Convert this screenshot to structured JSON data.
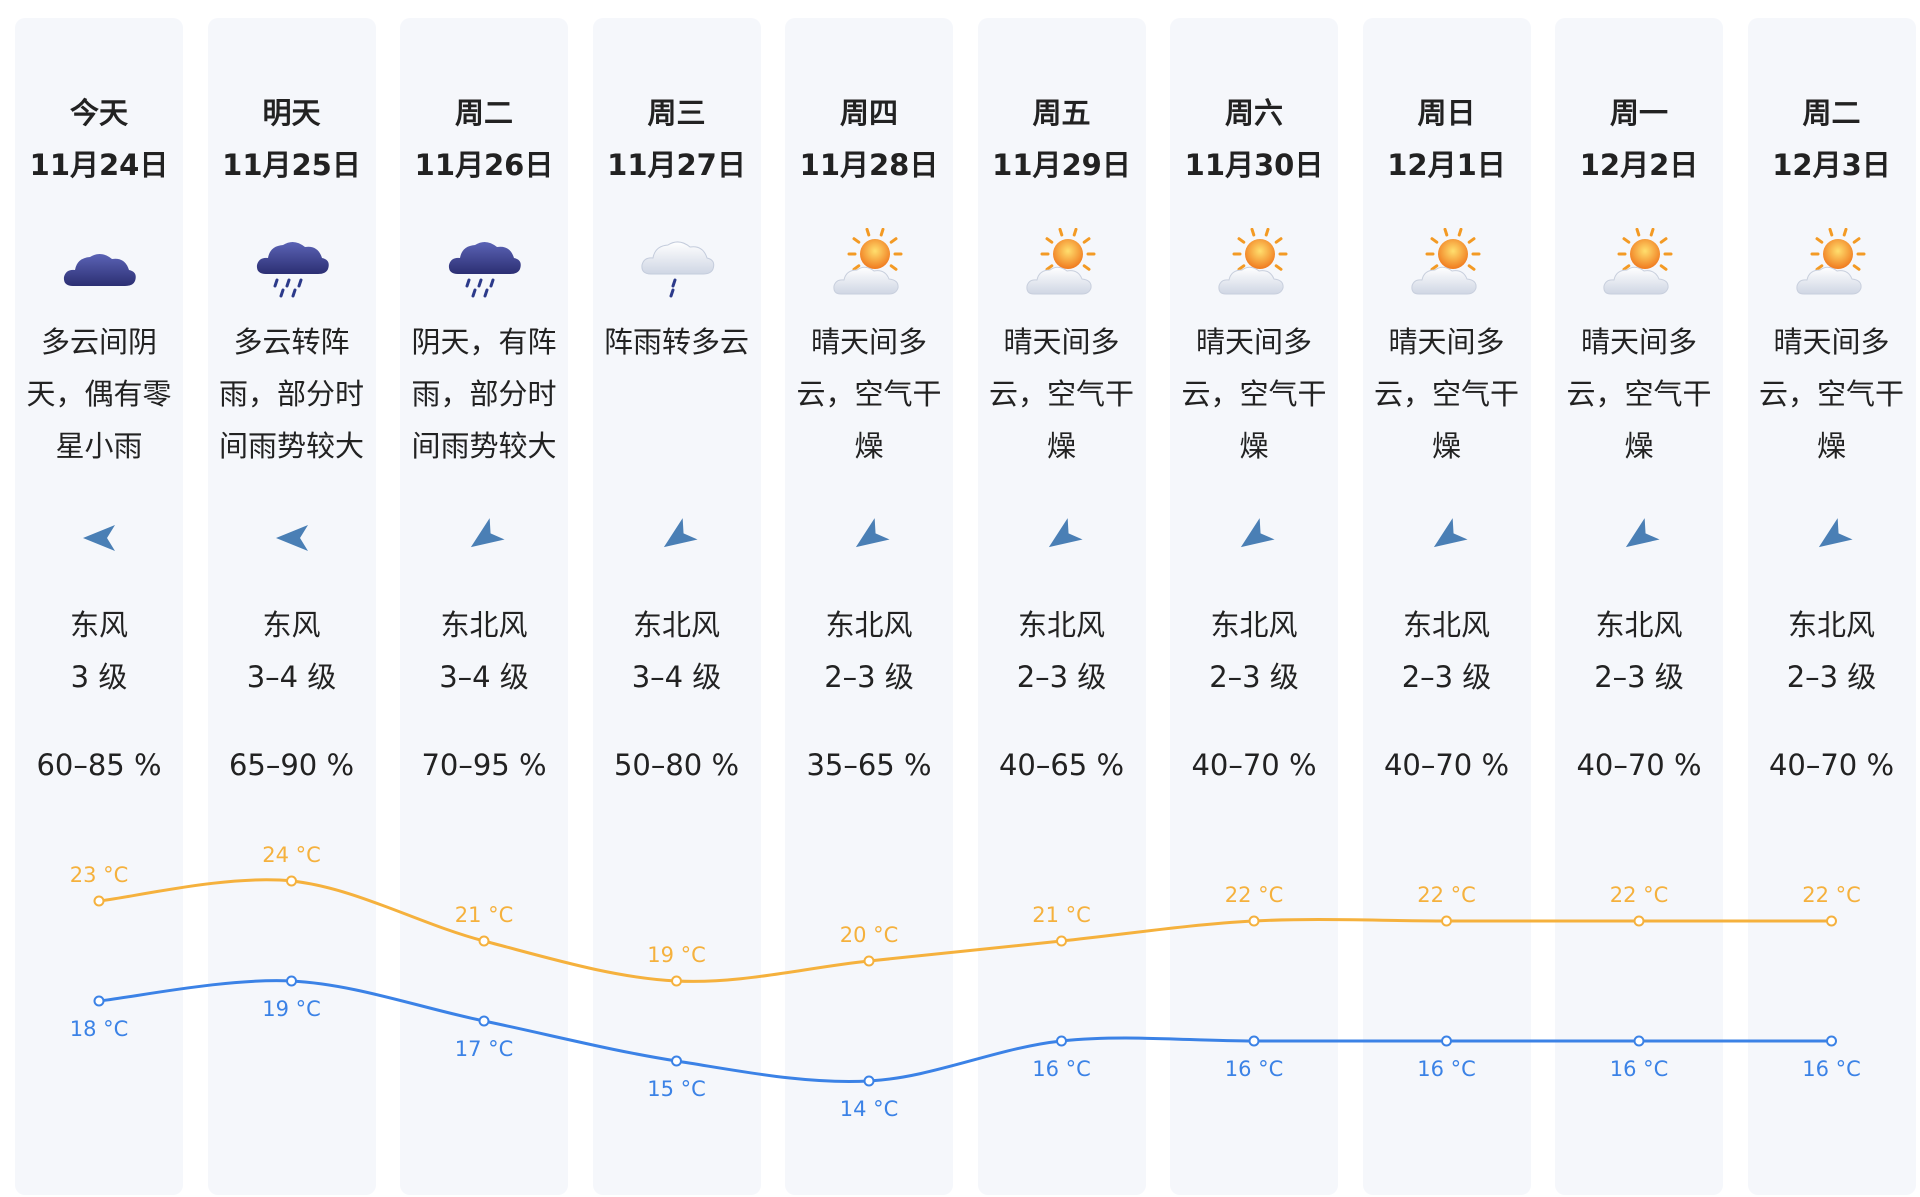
{
  "days": [
    {
      "name": "今天",
      "date": "11月24日",
      "icon": "cloudy-icon",
      "desc": "多云间阴天，偶有零星小雨",
      "wind_icon": "wind-east-icon",
      "wind_dir": "东风",
      "wind_level": "3 级",
      "humidity": "60–85 %",
      "high": 23,
      "low": 18,
      "high_label": "23 °C",
      "low_label": "18 °C"
    },
    {
      "name": "明天",
      "date": "11月25日",
      "icon": "heavy-rain-icon",
      "desc": "多云转阵雨，部分时间雨势较大",
      "wind_icon": "wind-east-icon",
      "wind_dir": "东风",
      "wind_level": "3–4 级",
      "humidity": "65–90 %",
      "high": 24,
      "low": 19,
      "high_label": "24 °C",
      "low_label": "19 °C"
    },
    {
      "name": "周二",
      "date": "11月26日",
      "icon": "heavy-rain-icon",
      "desc": "阴天，有阵雨，部分时间雨势较大",
      "wind_icon": "wind-northeast-icon",
      "wind_dir": "东北风",
      "wind_level": "3–4 级",
      "humidity": "70–95 %",
      "high": 21,
      "low": 17,
      "high_label": "21 °C",
      "low_label": "17 °C"
    },
    {
      "name": "周三",
      "date": "11月27日",
      "icon": "shower-icon",
      "desc": "阵雨转多云",
      "wind_icon": "wind-northeast-icon",
      "wind_dir": "东北风",
      "wind_level": "3–4 级",
      "humidity": "50–80 %",
      "high": 19,
      "low": 15,
      "high_label": "19 °C",
      "low_label": "15 °C"
    },
    {
      "name": "周四",
      "date": "11月28日",
      "icon": "sunny-cloudy-icon",
      "desc": "晴天间多云，空气干燥",
      "wind_icon": "wind-northeast-icon",
      "wind_dir": "东北风",
      "wind_level": "2–3 级",
      "humidity": "35–65 %",
      "high": 20,
      "low": 14,
      "high_label": "20 °C",
      "low_label": "14 °C"
    },
    {
      "name": "周五",
      "date": "11月29日",
      "icon": "sunny-cloudy-icon",
      "desc": "晴天间多云，空气干燥",
      "wind_icon": "wind-northeast-icon",
      "wind_dir": "东北风",
      "wind_level": "2–3 级",
      "humidity": "40–65 %",
      "high": 21,
      "low": 16,
      "high_label": "21 °C",
      "low_label": "16 °C"
    },
    {
      "name": "周六",
      "date": "11月30日",
      "icon": "sunny-cloudy-icon",
      "desc": "晴天间多云，空气干燥",
      "wind_icon": "wind-northeast-icon",
      "wind_dir": "东北风",
      "wind_level": "2–3 级",
      "humidity": "40–70 %",
      "high": 22,
      "low": 16,
      "high_label": "22 °C",
      "low_label": "16 °C"
    },
    {
      "name": "周日",
      "date": "12月1日",
      "icon": "sunny-cloudy-icon",
      "desc": "晴天间多云，空气干燥",
      "wind_icon": "wind-northeast-icon",
      "wind_dir": "东北风",
      "wind_level": "2–3 级",
      "humidity": "40–70 %",
      "high": 22,
      "low": 16,
      "high_label": "22 °C",
      "low_label": "16 °C"
    },
    {
      "name": "周一",
      "date": "12月2日",
      "icon": "sunny-cloudy-icon",
      "desc": "晴天间多云，空气干燥",
      "wind_icon": "wind-northeast-icon",
      "wind_dir": "东北风",
      "wind_level": "2–3 级",
      "humidity": "40–70 %",
      "high": 22,
      "low": 16,
      "high_label": "22 °C",
      "low_label": "16 °C"
    },
    {
      "name": "周二",
      "date": "12月3日",
      "icon": "sunny-cloudy-icon",
      "desc": "晴天间多云，空气干燥",
      "wind_icon": "wind-northeast-icon",
      "wind_dir": "东北风",
      "wind_level": "2–3 级",
      "humidity": "40–70 %",
      "high": 22,
      "low": 16,
      "high_label": "22 °C",
      "low_label": "16 °C"
    }
  ],
  "colors": {
    "high_line": "#f5b13d",
    "low_line": "#3b82e6",
    "column_bg": "#f5f7fb",
    "wind_arrow": "#4a7fb5"
  }
}
